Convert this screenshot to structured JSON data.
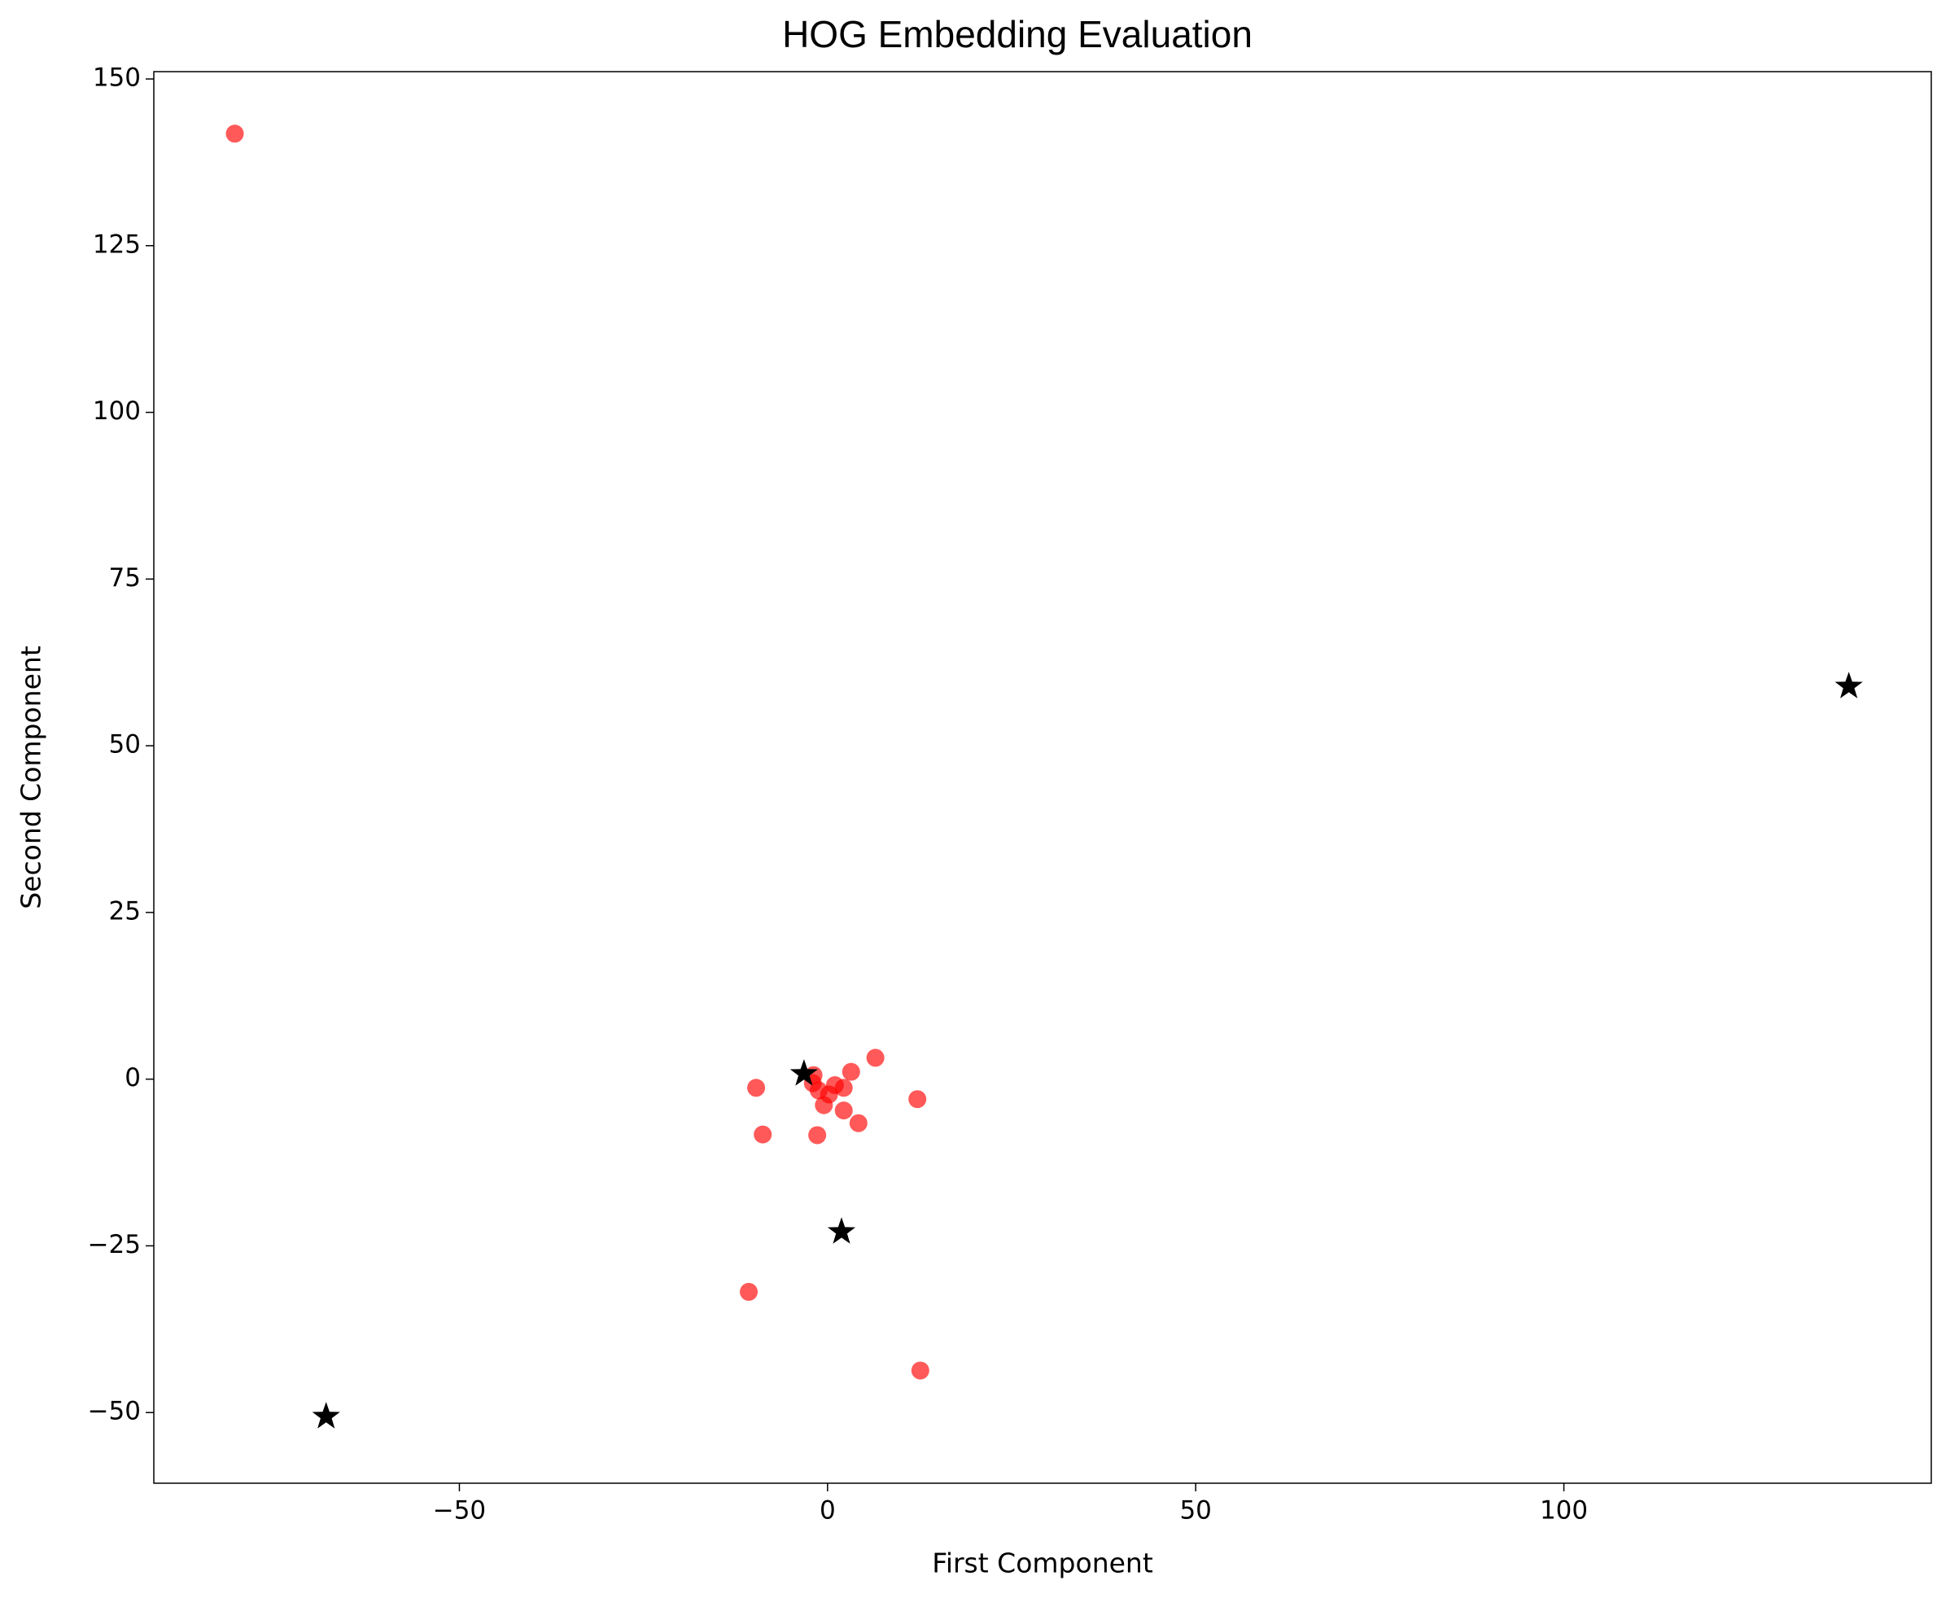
{
  "chart_data": {
    "type": "scatter",
    "title": "HOG Embedding  Evaluation",
    "xlabel": "First Component",
    "ylabel": "Second Component",
    "xlim": [
      -91.5,
      149.9
    ],
    "ylim": [
      -60.6,
      151.1
    ],
    "xticks": [
      {
        "value": -50,
        "label": "−50"
      },
      0,
      50,
      100
    ],
    "yticks": [
      {
        "value": -50,
        "label": "−50"
      },
      {
        "value": -25,
        "label": "−25"
      },
      0,
      25,
      50,
      75,
      100,
      125,
      150
    ],
    "grid": false,
    "series": [
      {
        "color": "#ff0000",
        "marker": "circle",
        "opacity": 0.65,
        "x": [
          -80.5,
          -9.7,
          -8.8,
          -1.4,
          -10.7,
          12.6,
          12.2,
          6.5,
          3.2,
          4.2,
          2.2,
          -0.5,
          2.2,
          -1.9,
          -1.2,
          0.2,
          1.0,
          -2.0
        ],
        "y": [
          141.8,
          -1.3,
          -8.3,
          -8.4,
          -31.9,
          -43.7,
          -3.0,
          3.2,
          1.1,
          -6.6,
          -4.7,
          -3.9,
          -1.3,
          0.6,
          -1.7,
          -2.3,
          -0.9,
          -0.6
        ]
      },
      {
        "color": "#000000",
        "marker": "star",
        "opacity": 1,
        "x": [
          -3.2,
          138.7,
          -68.1,
          1.9
        ],
        "y": [
          0.8,
          58.9,
          -50.6,
          -22.9
        ]
      }
    ]
  }
}
